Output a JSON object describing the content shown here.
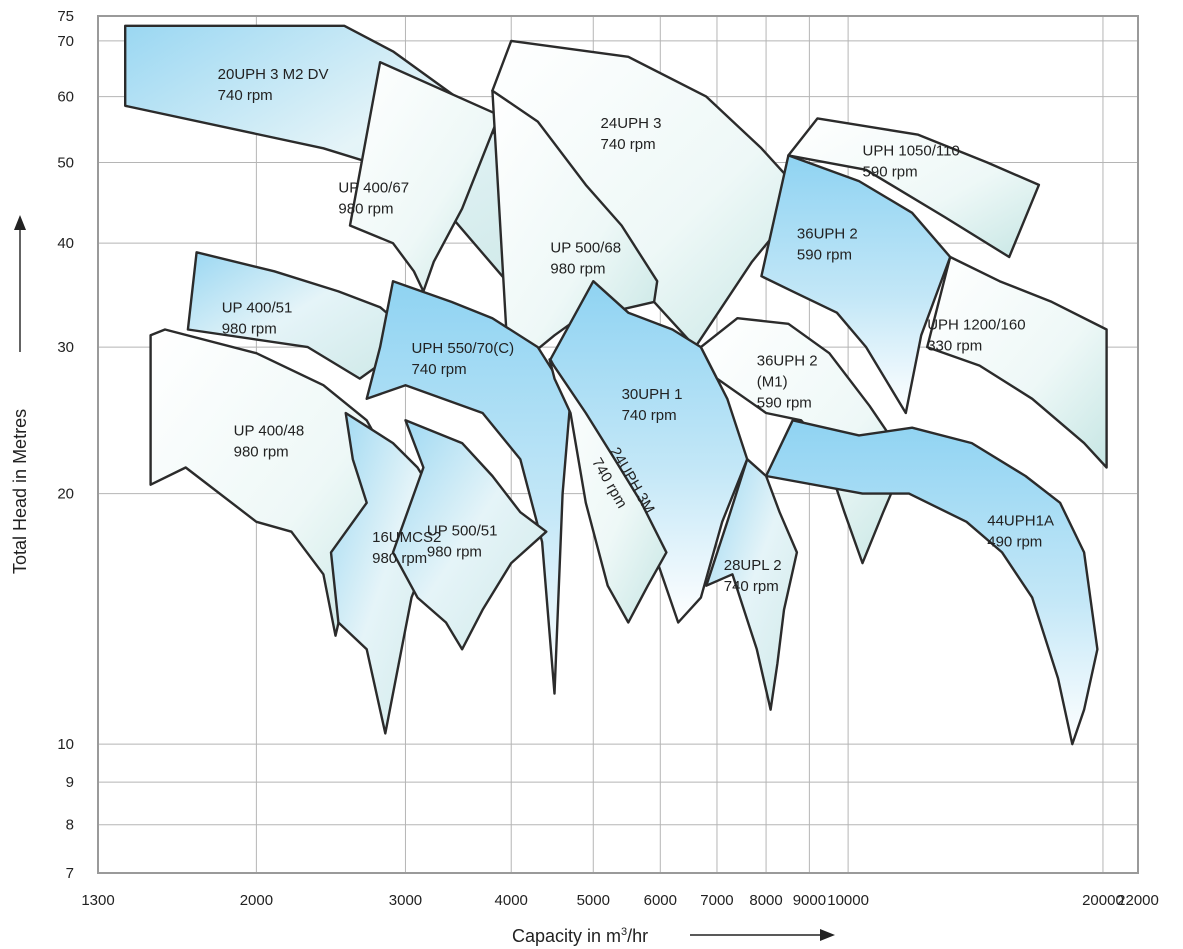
{
  "chart_data": {
    "type": "area",
    "title": "",
    "xlabel": "Capacity in m³/hr",
    "xlabel_parts": {
      "text": "Capacity in m",
      "sup": "3",
      "suffix": "/hr"
    },
    "ylabel": "Total Head in Metres",
    "x_scale": "log",
    "y_scale": "log",
    "xlim": [
      1300,
      22000
    ],
    "ylim": [
      7,
      75
    ],
    "x_ticks": [
      1300,
      2000,
      3000,
      4000,
      5000,
      6000,
      7000,
      8000,
      9000,
      10000,
      20000,
      22000
    ],
    "x_tick_labels": [
      "1300",
      "2000",
      "3000",
      "4000",
      "5000",
      "6000",
      "7000",
      "8000",
      "9000",
      "10000",
      "20000",
      "22000"
    ],
    "y_ticks": [
      7,
      8,
      9,
      10,
      20,
      30,
      40,
      50,
      60,
      70,
      75
    ],
    "y_tick_labels": [
      "7",
      "8",
      "9",
      "10",
      "20",
      "30",
      "40",
      "50",
      "60",
      "70",
      "75"
    ],
    "grid": true,
    "colors": {
      "deep": "#8fd3f2",
      "light": "#f1f8f7",
      "outline": "#2b2b2b",
      "grid": "#b5b5b5"
    },
    "series": [
      {
        "name": "20UPH 3 M2 DV",
        "speed": "740 rpm",
        "polygon": [
          [
            1400,
            73
          ],
          [
            2540,
            73
          ],
          [
            2900,
            68
          ],
          [
            3600,
            58
          ],
          [
            4100,
            50
          ],
          [
            4430,
            46
          ],
          [
            4260,
            40
          ],
          [
            3950,
            36
          ],
          [
            3100,
            48
          ],
          [
            2400,
            52
          ],
          [
            1400,
            58.5
          ]
        ],
        "label_at": [
          1800,
          63
        ],
        "shade": "mixed"
      },
      {
        "name": "24UPH 3",
        "speed": "740 rpm",
        "polygon": [
          [
            4000,
            70
          ],
          [
            5500,
            67
          ],
          [
            6800,
            60
          ],
          [
            7900,
            52
          ],
          [
            8900,
            45.5
          ],
          [
            7700,
            38
          ],
          [
            6600,
            30
          ],
          [
            5900,
            34
          ],
          [
            4800,
            44
          ],
          [
            3800,
            61
          ]
        ],
        "label_at": [
          5100,
          55
        ],
        "shade": "light"
      },
      {
        "name": "UPH 1050/110",
        "speed": "590 rpm",
        "polygon": [
          [
            9200,
            56.5
          ],
          [
            12100,
            54
          ],
          [
            14600,
            50
          ],
          [
            16800,
            47
          ],
          [
            15500,
            38.5
          ],
          [
            13000,
            43
          ],
          [
            10500,
            49
          ],
          [
            8500,
            51
          ]
        ],
        "label_at": [
          10400,
          51
        ],
        "shade": "light"
      },
      {
        "name": "UP 400/67",
        "speed": "980 rpm",
        "polygon": [
          [
            2800,
            66
          ],
          [
            3870,
            57
          ],
          [
            3500,
            44
          ],
          [
            3240,
            38
          ],
          [
            3150,
            35
          ],
          [
            3070,
            37
          ],
          [
            2900,
            40
          ],
          [
            2580,
            42
          ]
        ],
        "label_at": [
          2500,
          46
        ],
        "shade": "light"
      },
      {
        "name": "UP 500/68",
        "speed": "980 rpm",
        "polygon": [
          [
            3800,
            61
          ],
          [
            4300,
            56
          ],
          [
            4900,
            47
          ],
          [
            5400,
            42
          ],
          [
            5950,
            36
          ],
          [
            5900,
            34
          ],
          [
            5200,
            33
          ],
          [
            4700,
            32
          ],
          [
            4500,
            31
          ],
          [
            4240,
            29.5
          ],
          [
            3950,
            31
          ]
        ],
        "label_at": [
          4450,
          39
        ],
        "shade": "light"
      },
      {
        "name": "36UPH 2",
        "speed": "590 rpm",
        "polygon": [
          [
            8500,
            51
          ],
          [
            10300,
            47.5
          ],
          [
            11900,
            43.5
          ],
          [
            13200,
            38.5
          ],
          [
            12200,
            31
          ],
          [
            11700,
            25
          ],
          [
            10500,
            30
          ],
          [
            9700,
            33
          ],
          [
            8600,
            35
          ],
          [
            7900,
            36.5
          ]
        ],
        "label_at": [
          8700,
          40.5
        ],
        "shade": "deep"
      },
      {
        "name": "UPH 1200/160",
        "speed": "330 rpm",
        "polygon": [
          [
            13200,
            38.5
          ],
          [
            15100,
            36
          ],
          [
            17400,
            34
          ],
          [
            20200,
            31.5
          ],
          [
            20200,
            21.5
          ],
          [
            19000,
            23
          ],
          [
            16500,
            26
          ],
          [
            14300,
            28.5
          ],
          [
            12400,
            30
          ]
        ],
        "label_at": [
          12400,
          31.5
        ],
        "shade": "light"
      },
      {
        "name": "UP 400/51",
        "speed": "980 rpm",
        "polygon": [
          [
            1700,
            39
          ],
          [
            2100,
            37
          ],
          [
            2500,
            35
          ],
          [
            2800,
            33.5
          ],
          [
            2900,
            32.5
          ],
          [
            2850,
            29
          ],
          [
            2650,
            27.5
          ],
          [
            2300,
            30
          ],
          [
            1660,
            31.5
          ]
        ],
        "label_at": [
          1820,
          33
        ],
        "shade": "mixed"
      },
      {
        "name": "UPH 550/70(C)",
        "speed": "740 rpm",
        "polygon": [
          [
            2900,
            36
          ],
          [
            3400,
            34
          ],
          [
            3800,
            32.5
          ],
          [
            4300,
            30
          ],
          [
            4700,
            26
          ],
          [
            4600,
            20
          ],
          [
            4500,
            11.5
          ],
          [
            4350,
            17.5
          ],
          [
            4100,
            22
          ],
          [
            3700,
            25
          ],
          [
            3000,
            27
          ],
          [
            2700,
            26
          ],
          [
            2800,
            30
          ]
        ],
        "label_at": [
          3050,
          29.5
        ],
        "shade": "deep"
      },
      {
        "name": "30UPH 1",
        "speed": "740 rpm",
        "polygon": [
          [
            5000,
            36
          ],
          [
            5500,
            33
          ],
          [
            6200,
            31.5
          ],
          [
            6700,
            30
          ],
          [
            7200,
            26
          ],
          [
            7600,
            22
          ],
          [
            7100,
            18.5
          ],
          [
            6700,
            15
          ],
          [
            6300,
            14
          ],
          [
            5900,
            17
          ],
          [
            5400,
            21
          ],
          [
            4900,
            24
          ],
          [
            4450,
            29
          ]
        ],
        "label_at": [
          5400,
          26
        ],
        "shade": "deep"
      },
      {
        "name": "24UPH 3M",
        "speed": "740 rpm",
        "polygon": [
          [
            4440,
            29
          ],
          [
            4900,
            25
          ],
          [
            5300,
            22
          ],
          [
            5700,
            19.5
          ],
          [
            6100,
            17
          ],
          [
            5800,
            15.5
          ],
          [
            5500,
            14
          ],
          [
            5200,
            15.5
          ],
          [
            4900,
            19.5
          ],
          [
            4700,
            25
          ],
          [
            4500,
            27.5
          ]
        ],
        "label_at": [
          5230,
          22.5
        ],
        "shade": "light",
        "rotate": 60
      },
      {
        "name": "36UPH 2",
        "label2": "(M1)",
        "speed": "590 rpm",
        "polygon": [
          [
            6700,
            30
          ],
          [
            7400,
            32.5
          ],
          [
            8500,
            32
          ],
          [
            9500,
            29.5
          ],
          [
            10600,
            25.5
          ],
          [
            11700,
            22
          ],
          [
            11000,
            19
          ],
          [
            10400,
            16.5
          ],
          [
            9900,
            19
          ],
          [
            9300,
            23
          ],
          [
            8800,
            24.5
          ],
          [
            8000,
            25
          ],
          [
            7000,
            27.5
          ]
        ],
        "label_at": [
          7800,
          28.5
        ],
        "shade": "light"
      },
      {
        "name": "44UPH1A",
        "speed": "490 rpm",
        "polygon": [
          [
            8600,
            24.5
          ],
          [
            10300,
            23.5
          ],
          [
            11900,
            24
          ],
          [
            14000,
            23
          ],
          [
            16200,
            21
          ],
          [
            17800,
            19.5
          ],
          [
            19000,
            17
          ],
          [
            19700,
            13
          ],
          [
            19000,
            11
          ],
          [
            18400,
            10
          ],
          [
            17700,
            12
          ],
          [
            16500,
            15
          ],
          [
            15200,
            17
          ],
          [
            13800,
            18.5
          ],
          [
            11800,
            20
          ],
          [
            10400,
            20
          ],
          [
            8000,
            21
          ]
        ],
        "label_at": [
          14600,
          18.3
        ],
        "shade": "deep"
      },
      {
        "name": "UP 400/48",
        "speed": "980 rpm",
        "polygon": [
          [
            1560,
            31.5
          ],
          [
            2000,
            29.5
          ],
          [
            2400,
            27
          ],
          [
            2700,
            24.5
          ],
          [
            2900,
            21.5
          ],
          [
            2850,
            19
          ],
          [
            2700,
            17
          ],
          [
            2560,
            15.5
          ],
          [
            2480,
            13.5
          ],
          [
            2400,
            16
          ],
          [
            2200,
            18
          ],
          [
            2000,
            18.5
          ],
          [
            1650,
            21.5
          ],
          [
            1500,
            20.5
          ],
          [
            1500,
            31
          ]
        ],
        "label_at": [
          1880,
          23.5
        ],
        "shade": "light"
      },
      {
        "name": "16UMCS2",
        "speed": "980 rpm",
        "polygon": [
          [
            2550,
            25
          ],
          [
            2900,
            23
          ],
          [
            3100,
            21.5
          ],
          [
            3290,
            19.5
          ],
          [
            3200,
            17
          ],
          [
            3050,
            15
          ],
          [
            2840,
            10.3
          ],
          [
            2700,
            13
          ],
          [
            2500,
            14
          ],
          [
            2450,
            17
          ],
          [
            2700,
            19.5
          ],
          [
            2600,
            22
          ]
        ],
        "label_at": [
          2740,
          17.5
        ],
        "shade": "mixed"
      },
      {
        "name": "UP 500/51",
        "speed": "980 rpm",
        "polygon": [
          [
            3000,
            24.5
          ],
          [
            3500,
            23
          ],
          [
            3800,
            21
          ],
          [
            4100,
            19
          ],
          [
            4400,
            18
          ],
          [
            4000,
            16.5
          ],
          [
            3700,
            14.5
          ],
          [
            3500,
            13
          ],
          [
            3350,
            14
          ],
          [
            3100,
            15
          ],
          [
            2900,
            17
          ],
          [
            3150,
            21.5
          ]
        ],
        "label_at": [
          3180,
          17.8
        ],
        "shade": "mixed"
      },
      {
        "name": "28UPL 2",
        "speed": "740 rpm",
        "polygon": [
          [
            7600,
            22
          ],
          [
            8000,
            21
          ],
          [
            8300,
            19
          ],
          [
            8700,
            17
          ],
          [
            8400,
            14.5
          ],
          [
            8250,
            12.5
          ],
          [
            8100,
            11
          ],
          [
            7800,
            13
          ],
          [
            7300,
            16
          ],
          [
            6800,
            15.5
          ],
          [
            7200,
            18.5
          ]
        ],
        "label_at": [
          7130,
          16.2
        ],
        "shade": "mixed"
      }
    ]
  }
}
